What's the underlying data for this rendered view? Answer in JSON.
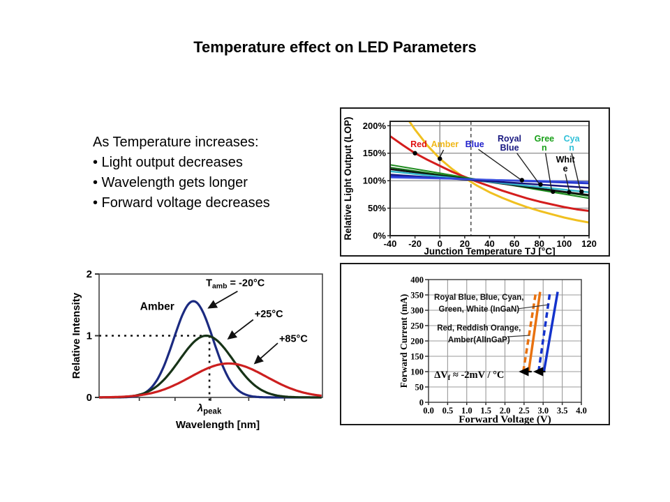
{
  "slide": {
    "title": "Temperature effect on LED Parameters",
    "background_color": "#ffffff"
  },
  "text_block": {
    "heading": "As Temperature increases:",
    "bullets": [
      "• Light output decreases",
      "• Wavelength gets longer",
      "• Forward voltage decreases"
    ]
  },
  "chart_data": [
    {
      "id": "lop",
      "type": "line",
      "title": "",
      "xlabel": "Junction Temperature TJ [°C]",
      "ylabel": "Relative Light Output (LOP)",
      "xlim": [
        -40,
        120
      ],
      "xticks": [
        -40,
        -20,
        0,
        20,
        40,
        60,
        80,
        100,
        120
      ],
      "ylim": [
        0,
        208
      ],
      "yticks": [
        0,
        50,
        100,
        150,
        200
      ],
      "ytick_suffix": "%",
      "grid_y": [
        50,
        100,
        150,
        200
      ],
      "vline_solid_x": 0,
      "vline_dashed_x": 25,
      "series": [
        {
          "name": "Amber",
          "color": "#f0c020",
          "width": 3,
          "points": [
            [
              -40,
              265
            ],
            [
              -30,
              226
            ],
            [
              -20,
              193
            ],
            [
              -10,
              164
            ],
            [
              0,
              140
            ],
            [
              10,
              121
            ],
            [
              20,
              105
            ],
            [
              30,
              91
            ],
            [
              40,
              79
            ],
            [
              50,
              69
            ],
            [
              60,
              60
            ],
            [
              70,
              52
            ],
            [
              80,
              45
            ],
            [
              90,
              39
            ],
            [
              100,
              33
            ],
            [
              110,
              28
            ],
            [
              120,
              24
            ]
          ]
        },
        {
          "name": "Red",
          "color": "#d41d1d",
          "width": 3,
          "points": [
            [
              -40,
              181
            ],
            [
              -30,
              165
            ],
            [
              -20,
              150
            ],
            [
              -10,
              138
            ],
            [
              0,
              127
            ],
            [
              10,
              116
            ],
            [
              20,
              107
            ],
            [
              30,
              98
            ],
            [
              40,
              90
            ],
            [
              50,
              82
            ],
            [
              60,
              75
            ],
            [
              70,
              68
            ],
            [
              80,
              62
            ],
            [
              90,
              57
            ],
            [
              100,
              52
            ],
            [
              110,
              48
            ],
            [
              120,
              45
            ]
          ]
        },
        {
          "name": "Green",
          "color": "#1e8c1e",
          "width": 2,
          "points": [
            [
              -40,
              129
            ],
            [
              120,
              68
            ]
          ]
        },
        {
          "name": "Green 2",
          "color": "#0f6e14",
          "width": 2,
          "points": [
            [
              -40,
              124
            ],
            [
              120,
              72
            ]
          ]
        },
        {
          "name": "White",
          "color": "#111111",
          "width": 2.5,
          "points": [
            [
              -40,
              121
            ],
            [
              120,
              74
            ]
          ]
        },
        {
          "name": "Cyan",
          "color": "#35b8cc",
          "width": 2.5,
          "points": [
            [
              -40,
              117
            ],
            [
              120,
              79
            ]
          ]
        },
        {
          "name": "Royal Blue",
          "color": "#14147a",
          "width": 2.5,
          "points": [
            [
              -40,
              111
            ],
            [
              120,
              87
            ]
          ]
        },
        {
          "name": "Blue",
          "color": "#2233cc",
          "width": 2.5,
          "points": [
            [
              -40,
              108
            ],
            [
              120,
              95
            ]
          ]
        },
        {
          "name": "Blue 2",
          "color": "#3d52e0",
          "width": 2,
          "points": [
            [
              -40,
              105.5
            ],
            [
              120,
              98
            ]
          ]
        }
      ],
      "markers": [
        [
          -20,
          150
        ],
        [
          0,
          140
        ],
        [
          66,
          101
        ],
        [
          81,
          93
        ],
        [
          91,
          80
        ],
        [
          104,
          79
        ],
        [
          114,
          80
        ]
      ],
      "curve_labels": [
        {
          "lines": [
            "Red"
          ],
          "color": "#e01010",
          "x": -17,
          "y": [
            161
          ]
        },
        {
          "lines": [
            "Amber"
          ],
          "color": "#f0b81a",
          "x": 4,
          "y": [
            161
          ]
        },
        {
          "lines": [
            "Blue"
          ],
          "color": "#2222cc",
          "x": 28,
          "y": [
            161
          ]
        },
        {
          "lines": [
            "Royal",
            "Blue"
          ],
          "color": "#181880",
          "x": 56,
          "y": [
            171,
            155
          ]
        },
        {
          "lines": [
            "Gree",
            "n"
          ],
          "color": "#18a018",
          "x": 84,
          "y": [
            171,
            155
          ]
        },
        {
          "lines": [
            "Cya",
            "n"
          ],
          "color": "#30c0d8",
          "x": 106,
          "y": [
            171,
            155
          ]
        },
        {
          "lines": [
            "Whit",
            "e"
          ],
          "color": "#000000",
          "x": 101,
          "y": [
            133,
            117
          ]
        }
      ],
      "leaders": [
        {
          "from": [
            3,
            156
          ],
          "to": [
            0,
            143
          ]
        },
        {
          "from": [
            31,
            157
          ],
          "to": [
            65,
            102
          ]
        },
        {
          "from": [
            62,
            150
          ],
          "to": [
            80,
            94
          ]
        },
        {
          "from": [
            85,
            150
          ],
          "to": [
            90,
            81
          ]
        },
        {
          "from": [
            106,
            150
          ],
          "to": [
            113,
            82
          ]
        },
        {
          "from": [
            101,
            112
          ],
          "to": [
            104,
            81
          ]
        }
      ]
    },
    {
      "id": "spectrum",
      "type": "line",
      "title": "",
      "xlabel": "Wavelength [nm]",
      "ylabel": "Relative Intensity",
      "xlim": [
        0,
        1
      ],
      "xticks": [
        0.18,
        0.34,
        0.5,
        0.67,
        0.83
      ],
      "xtick_labels_shown": false,
      "ylim": [
        0,
        2
      ],
      "yticks": [
        0,
        1,
        2
      ],
      "series": [
        {
          "name": "Tamb = -20°C",
          "color": "#1b2a80",
          "width": 3.2,
          "gauss": {
            "center": 0.422,
            "sigma": 0.088,
            "peak": 1.56
          }
        },
        {
          "name": "+25°C",
          "color": "#173317",
          "width": 3.2,
          "gauss": {
            "center": 0.48,
            "sigma": 0.12,
            "peak": 1.0
          }
        },
        {
          "name": "+85°C",
          "color": "#cc1f1f",
          "width": 3.2,
          "gauss": {
            "center": 0.58,
            "sigma": 0.17,
            "peak": 0.55
          }
        }
      ],
      "dashed_h": {
        "y": 1,
        "x1": 0,
        "x2": 0.494
      },
      "dashed_v": {
        "x": 0.494,
        "y1": 0,
        "y2": 1
      },
      "material_label": {
        "text": "Amber",
        "x": 0.26,
        "y": 1.42
      },
      "peak_label": {
        "main": "λ",
        "sub": "peak",
        "x": 0.494
      },
      "annotations": [
        {
          "main": "T",
          "sub": "amb",
          "rest": " = -20°C",
          "x": 0.61,
          "y": 1.8,
          "arrow": {
            "from": [
              0.62,
              1.72
            ],
            "to": [
              0.49,
              1.45
            ]
          }
        },
        {
          "main": "",
          "sub": "",
          "rest": "+25°C",
          "x": 0.76,
          "y": 1.3,
          "arrow": {
            "from": [
              0.69,
              1.26
            ],
            "to": [
              0.578,
              0.95
            ]
          }
        },
        {
          "main": "",
          "sub": "",
          "rest": "+85°C",
          "x": 0.87,
          "y": 0.9,
          "arrow": {
            "from": [
              0.8,
              0.88
            ],
            "to": [
              0.697,
              0.55
            ]
          }
        }
      ]
    },
    {
      "id": "iv",
      "type": "line",
      "title": "",
      "xlabel": "Forward Voltage (V)",
      "ylabel": "Forward Current (mA)",
      "xlim": [
        0,
        4
      ],
      "xticks": [
        0,
        0.5,
        1,
        1.5,
        2,
        2.5,
        3,
        3.5,
        4
      ],
      "xtick_decimals": 1,
      "ylim": [
        0,
        400
      ],
      "yticks": [
        0,
        50,
        100,
        150,
        200,
        250,
        300,
        350,
        400
      ],
      "grid": "both",
      "series": [
        {
          "name": "AlInGaP dashed",
          "color": "#e87210",
          "dash": "8 5",
          "width": 3.5,
          "points": [
            [
              2.48,
              100
            ],
            [
              2.81,
              360
            ]
          ]
        },
        {
          "name": "AlInGaP solid",
          "color": "#e87210",
          "dash": "",
          "width": 3.5,
          "points": [
            [
              2.62,
              100
            ],
            [
              2.92,
              360
            ]
          ]
        },
        {
          "name": "InGaN dashed",
          "color": "#1433cc",
          "dash": "8 5",
          "width": 3.5,
          "points": [
            [
              2.88,
              100
            ],
            [
              3.18,
              360
            ]
          ]
        },
        {
          "name": "InGaN solid",
          "color": "#1433cc",
          "dash": "",
          "width": 3.5,
          "points": [
            [
              3.02,
              100
            ],
            [
              3.38,
              360
            ]
          ]
        }
      ],
      "legend_texts": [
        {
          "lines": [
            "Royal Blue, Blue, Cyan,",
            "Green, White (InGaN)"
          ],
          "x": 1.32,
          "y": [
            334,
            295
          ],
          "leader": {
            "from": [
              2.35,
              305
            ],
            "to": [
              3.13,
              318
            ]
          }
        },
        {
          "lines": [
            "Red, Reddish Orange,",
            "Amber(AlInGaP)"
          ],
          "x": 1.32,
          "y": [
            234,
            195
          ],
          "leader": {
            "from": [
              2.1,
              214
            ],
            "to": [
              2.64,
              218
            ]
          }
        }
      ],
      "annotation": {
        "main": "ΔV",
        "sub": "f",
        "rest": " ≈ -2mV / °C",
        "x": 0.15,
        "y": 91
      },
      "shift_arrows": [
        {
          "from": [
            2.7,
            100
          ],
          "to": [
            2.4,
            100
          ]
        },
        {
          "from": [
            3.06,
            100
          ],
          "to": [
            2.78,
            100
          ]
        }
      ]
    }
  ]
}
